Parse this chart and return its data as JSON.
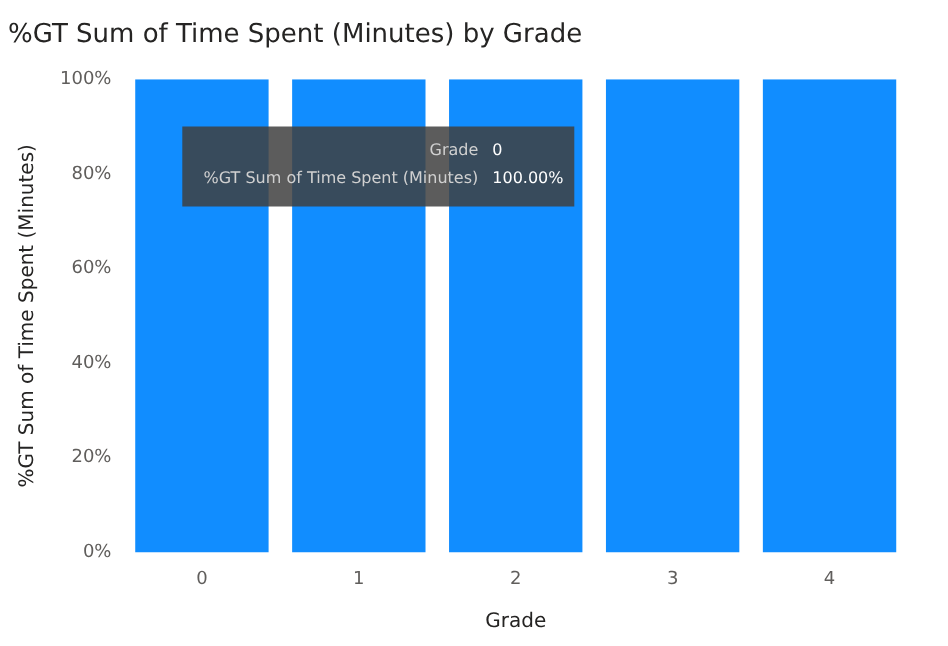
{
  "chart_data": {
    "type": "bar",
    "title": "%GT Sum of Time Spent (Minutes) by Grade",
    "xlabel": "Grade",
    "ylabel": "%GT Sum of Time Spent (Minutes)",
    "categories": [
      "0",
      "1",
      "2",
      "3",
      "4"
    ],
    "values": [
      100,
      100,
      100,
      100,
      100
    ],
    "color": "#118dff",
    "ylim": [
      0,
      100
    ],
    "yticks": [
      {
        "value": 0,
        "label": "0%"
      },
      {
        "value": 20,
        "label": "20%"
      },
      {
        "value": 40,
        "label": "40%"
      },
      {
        "value": 60,
        "label": "60%"
      },
      {
        "value": 80,
        "label": "80%"
      },
      {
        "value": 100,
        "label": "100%"
      }
    ],
    "annotations": [
      "Grade",
      "0",
      "%GT Sum of Time Spent (Minutes)",
      "100.00%"
    ],
    "grid": false,
    "legend": false
  }
}
